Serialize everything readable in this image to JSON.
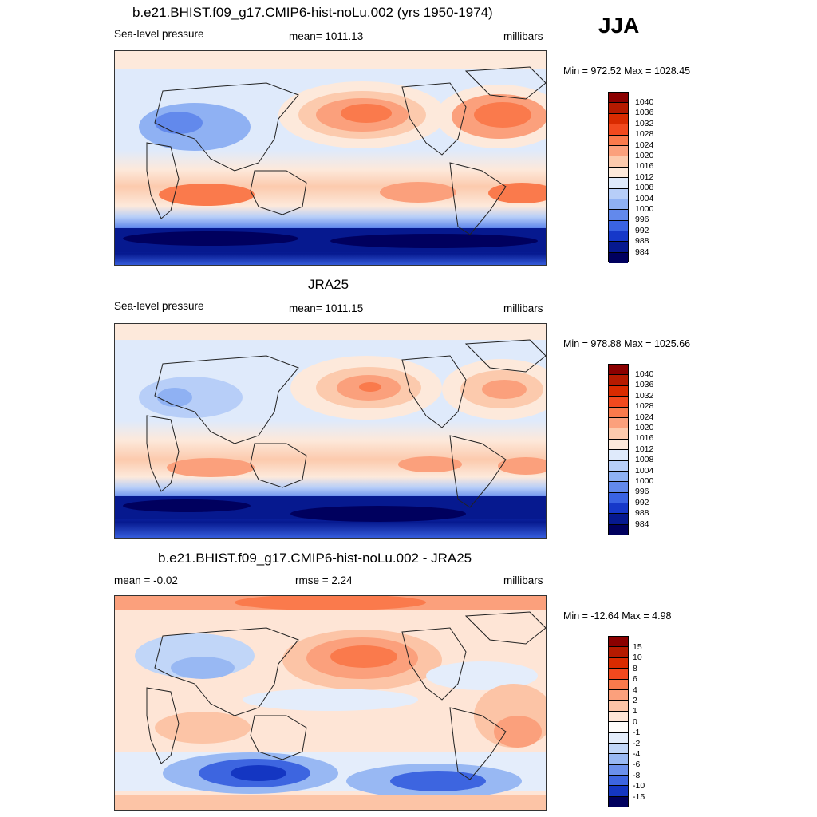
{
  "season": "JJA",
  "panels": [
    {
      "title": "b.e21.BHIST.f09_g17.CMIP6-hist-noLu.002 (yrs 1950-1974)",
      "left": "Sea-level pressure",
      "center": "mean= 1011.13",
      "right": "millibars",
      "minmax": "Min = 972.52 Max = 1028.45",
      "colorbar_labels": [
        "1040",
        "1036",
        "1032",
        "1028",
        "1024",
        "1020",
        "1016",
        "1012",
        "1008",
        "1004",
        "1000",
        "996",
        "992",
        "988",
        "984"
      ]
    },
    {
      "title": "JRA25",
      "left": "Sea-level pressure",
      "center": "mean= 1011.15",
      "right": "millibars",
      "minmax": "Min = 978.88 Max = 1025.66",
      "colorbar_labels": [
        "1040",
        "1036",
        "1032",
        "1028",
        "1024",
        "1020",
        "1016",
        "1012",
        "1008",
        "1004",
        "1000",
        "996",
        "992",
        "988",
        "984"
      ]
    },
    {
      "title": "b.e21.BHIST.f09_g17.CMIP6-hist-noLu.002 - JRA25",
      "left": "mean =  -0.02",
      "center": "rmse =   2.24",
      "right": "millibars",
      "minmax": "Min = -12.64 Max =   4.98",
      "colorbar_labels": [
        "15",
        "10",
        "8",
        "6",
        "4",
        "2",
        "1",
        "0",
        "-1",
        "-2",
        "-4",
        "-6",
        "-8",
        "-10",
        "-15"
      ]
    }
  ],
  "colors": {
    "absolute_scale": [
      "#8b0000",
      "#b51a00",
      "#d92b00",
      "#f2491e",
      "#fa7a4c",
      "#fba07c",
      "#fccaad",
      "#fde9db",
      "#dfeafb",
      "#b7cef8",
      "#8fb1f3",
      "#6289ec",
      "#3a63e3",
      "#1638c9",
      "#06198f",
      "#00005e"
    ],
    "diff_scale": [
      "#8b0000",
      "#b51a00",
      "#d92b00",
      "#f2491e",
      "#fa7a4c",
      "#fba07c",
      "#fcc4a6",
      "#fee5d6",
      "#fffdfb",
      "#e4edfb",
      "#c1d6f8",
      "#98b8f3",
      "#6b90ec",
      "#3d65e0",
      "#1436c2",
      "#00005e"
    ]
  }
}
